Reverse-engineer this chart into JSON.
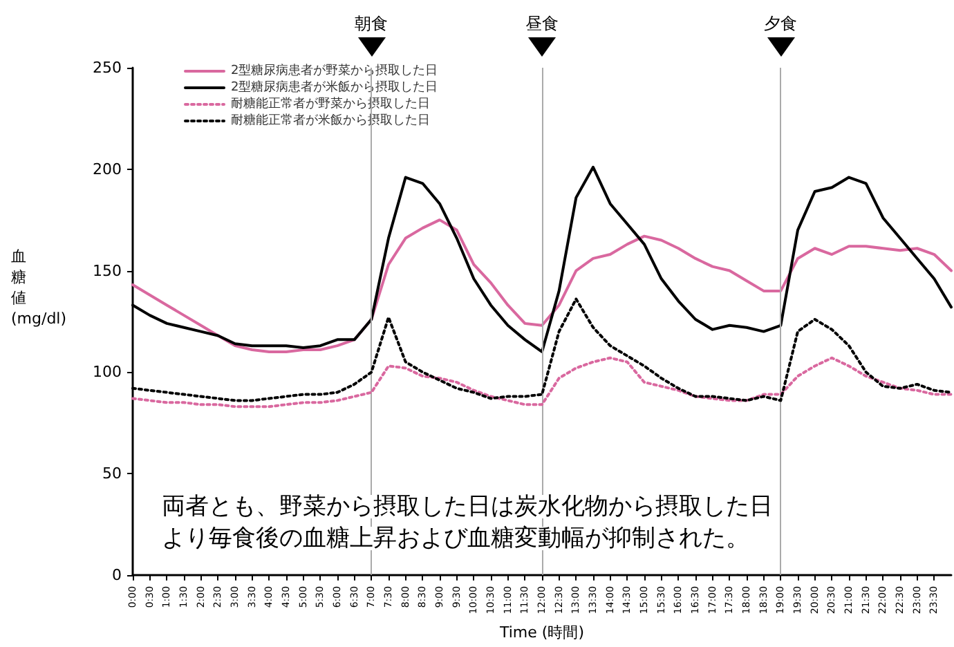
{
  "chart_data": {
    "type": "line",
    "xlabel": "Time (時間)",
    "ylabel": "血糖値 (mg/dl)",
    "x": [
      0,
      0.5,
      1,
      1.5,
      2,
      2.5,
      3,
      3.5,
      4,
      4.5,
      5,
      5.5,
      6,
      6.5,
      7,
      7.5,
      8,
      8.5,
      9,
      9.5,
      10,
      10.5,
      11,
      11.5,
      12,
      12.5,
      13,
      13.5,
      14,
      14.5,
      15,
      15.5,
      16,
      16.5,
      17,
      17.5,
      18,
      18.5,
      19,
      19.5,
      20,
      20.5,
      21,
      21.5,
      22,
      22.5,
      23,
      23.5,
      24
    ],
    "series": [
      {
        "name": "2型糖尿病患者が野菜から摂取した日",
        "color": "#d9689f",
        "line_style": "solid",
        "values": [
          143,
          138,
          133,
          128,
          123,
          118,
          113,
          111,
          110,
          110,
          111,
          111,
          113,
          116,
          126,
          153,
          166,
          171,
          175,
          170,
          153,
          144,
          133,
          124,
          123,
          133,
          150,
          156,
          158,
          163,
          167,
          165,
          161,
          156,
          152,
          150,
          145,
          140,
          140,
          156,
          161,
          158,
          162,
          162,
          161,
          160,
          161,
          158,
          150
        ]
      },
      {
        "name": "2型糖尿病患者が米飯から摂取した日",
        "color": "#000000",
        "line_style": "solid",
        "values": [
          133,
          128,
          124,
          122,
          120,
          118,
          114,
          113,
          113,
          113,
          112,
          113,
          116,
          116,
          126,
          166,
          196,
          193,
          183,
          166,
          146,
          133,
          123,
          116,
          110,
          140,
          186,
          201,
          183,
          173,
          163,
          146,
          135,
          126,
          121,
          123,
          122,
          120,
          123,
          170,
          189,
          191,
          196,
          193,
          176,
          166,
          156,
          146,
          132
        ]
      },
      {
        "name": "耐糖能正常者が野菜から摂取した日",
        "color": "#d9689f",
        "line_style": "dotted",
        "values": [
          87,
          86,
          85,
          85,
          84,
          84,
          83,
          83,
          83,
          84,
          85,
          85,
          86,
          88,
          90,
          103,
          102,
          98,
          97,
          95,
          91,
          88,
          86,
          84,
          84,
          97,
          102,
          105,
          107,
          105,
          95,
          93,
          91,
          88,
          87,
          86,
          86,
          89,
          89,
          98,
          103,
          107,
          103,
          98,
          95,
          92,
          91,
          89,
          89
        ]
      },
      {
        "name": "耐糖能正常者が米飯から摂取した日",
        "color": "#000000",
        "line_style": "dotted",
        "values": [
          92,
          91,
          90,
          89,
          88,
          87,
          86,
          86,
          87,
          88,
          89,
          89,
          90,
          94,
          100,
          127,
          105,
          100,
          96,
          92,
          90,
          87,
          88,
          88,
          89,
          120,
          136,
          122,
          113,
          108,
          103,
          97,
          92,
          88,
          88,
          87,
          86,
          88,
          86,
          120,
          126,
          121,
          113,
          100,
          93,
          92,
          94,
          91,
          90
        ]
      }
    ],
    "xlim": [
      0,
      24
    ],
    "xticks": [
      {
        "value": 0,
        "label": "0:00"
      },
      {
        "value": 0.5,
        "label": "0:30"
      },
      {
        "value": 1,
        "label": "1:00"
      },
      {
        "value": 1.5,
        "label": "1:30"
      },
      {
        "value": 2,
        "label": "2:00"
      },
      {
        "value": 2.5,
        "label": "2:30"
      },
      {
        "value": 3,
        "label": "3:00"
      },
      {
        "value": 3.5,
        "label": "3:30"
      },
      {
        "value": 4,
        "label": "4:00"
      },
      {
        "value": 4.5,
        "label": "4:30"
      },
      {
        "value": 5,
        "label": "5:00"
      },
      {
        "value": 5.5,
        "label": "5:30"
      },
      {
        "value": 6,
        "label": "6:00"
      },
      {
        "value": 6.5,
        "label": "6:30"
      },
      {
        "value": 7,
        "label": "7:00"
      },
      {
        "value": 7.5,
        "label": "7:30"
      },
      {
        "value": 8,
        "label": "8:00"
      },
      {
        "value": 8.5,
        "label": "8:30"
      },
      {
        "value": 9,
        "label": "9:00"
      },
      {
        "value": 9.5,
        "label": "9:30"
      },
      {
        "value": 10,
        "label": "10:00"
      },
      {
        "value": 10.5,
        "label": "10:30"
      },
      {
        "value": 11,
        "label": "11:00"
      },
      {
        "value": 11.5,
        "label": "11:30"
      },
      {
        "value": 12,
        "label": "12:00"
      },
      {
        "value": 12.5,
        "label": "12:30"
      },
      {
        "value": 13,
        "label": "13:00"
      },
      {
        "value": 13.5,
        "label": "13:30"
      },
      {
        "value": 14,
        "label": "14:00"
      },
      {
        "value": 14.5,
        "label": "14:30"
      },
      {
        "value": 15,
        "label": "15:00"
      },
      {
        "value": 15.5,
        "label": "15:30"
      },
      {
        "value": 16,
        "label": "16:00"
      },
      {
        "value": 16.5,
        "label": "16:30"
      },
      {
        "value": 17,
        "label": "17:00"
      },
      {
        "value": 17.5,
        "label": "17:30"
      },
      {
        "value": 18,
        "label": "18:00"
      },
      {
        "value": 18.5,
        "label": "18:30"
      },
      {
        "value": 19,
        "label": "19:00"
      },
      {
        "value": 19.5,
        "label": "19:30"
      },
      {
        "value": 20,
        "label": "20:00"
      },
      {
        "value": 20.5,
        "label": "20:30"
      },
      {
        "value": 21,
        "label": "21:00"
      },
      {
        "value": 21.5,
        "label": "21:30"
      },
      {
        "value": 22,
        "label": "22:00"
      },
      {
        "value": 22.5,
        "label": "22:30"
      },
      {
        "value": 23,
        "label": "23:00"
      },
      {
        "value": 23.5,
        "label": "23:30"
      }
    ],
    "ylim": [
      0,
      250
    ],
    "yticks": [
      0,
      50,
      100,
      150,
      200,
      250
    ],
    "ref_lines": [
      {
        "axis": "x",
        "value": 7,
        "label": "朝食",
        "color": "#aaaaaa"
      },
      {
        "axis": "x",
        "value": 12,
        "label": "昼食",
        "color": "#aaaaaa"
      },
      {
        "axis": "x",
        "value": 19,
        "label": "夕食",
        "color": "#aaaaaa"
      }
    ],
    "annotations": [
      "両者とも、野菜から摂取した日は炭水化物から摂取した日",
      "より毎食後の血糖上昇および血糖変動幅が抑制された。"
    ],
    "grid": false,
    "legend": "top left",
    "marker": "none"
  }
}
